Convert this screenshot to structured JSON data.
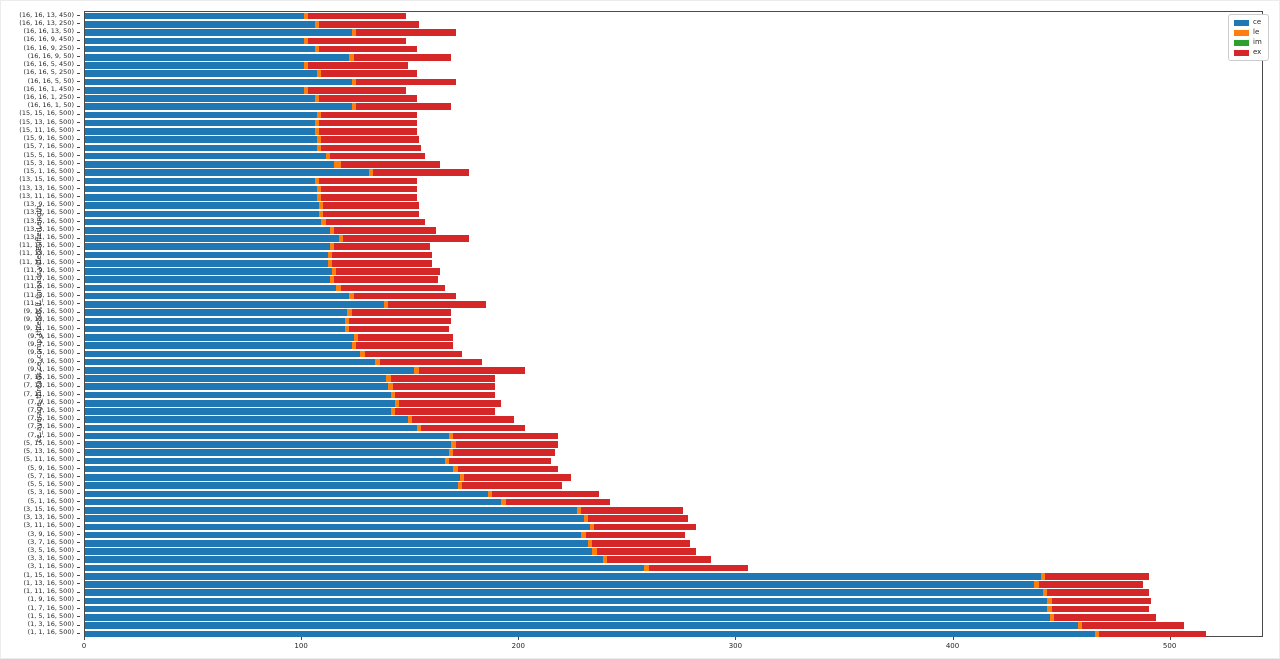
{
  "chart_data": {
    "type": "bar",
    "orientation": "horizontal",
    "stacked": true,
    "title": "",
    "xlabel": "",
    "ylabel": "ce_average_threads,ce_comp_threads,lf_threads,videoBufferLength",
    "xlim": [
      0,
      543
    ],
    "xticks": [
      0,
      100,
      200,
      300,
      400,
      500
    ],
    "grid": false,
    "legend_position": "upper right",
    "bar_color_accents": {
      "ce": "#1f77b4",
      "le": "#ff7f0e",
      "im": "#2ca02c",
      "ex": "#d62728"
    },
    "categories": [
      "(16, 16, 13, 450)",
      "(16, 16, 13, 250)",
      "(16, 16, 13, 50)",
      "(16, 16, 9, 450)",
      "(16, 16, 9, 250)",
      "(16, 16, 9, 50)",
      "(16, 16, 5, 450)",
      "(16, 16, 5, 250)",
      "(16, 16, 5, 50)",
      "(16, 16, 1, 450)",
      "(16, 16, 1, 250)",
      "(16, 16, 1, 50)",
      "(15, 15, 16, 500)",
      "(15, 13, 16, 500)",
      "(15, 11, 16, 500)",
      "(15, 9, 16, 500)",
      "(15, 7, 16, 500)",
      "(15, 5, 16, 500)",
      "(15, 3, 16, 500)",
      "(15, 1, 16, 500)",
      "(13, 15, 16, 500)",
      "(13, 13, 16, 500)",
      "(13, 11, 16, 500)",
      "(13, 9, 16, 500)",
      "(13, 7, 16, 500)",
      "(13, 5, 16, 500)",
      "(13, 3, 16, 500)",
      "(13, 1, 16, 500)",
      "(11, 15, 16, 500)",
      "(11, 13, 16, 500)",
      "(11, 11, 16, 500)",
      "(11, 9, 16, 500)",
      "(11, 7, 16, 500)",
      "(11, 5, 16, 500)",
      "(11, 3, 16, 500)",
      "(11, 1, 16, 500)",
      "(9, 15, 16, 500)",
      "(9, 13, 16, 500)",
      "(9, 11, 16, 500)",
      "(9, 9, 16, 500)",
      "(9, 7, 16, 500)",
      "(9, 5, 16, 500)",
      "(9, 3, 16, 500)",
      "(9, 1, 16, 500)",
      "(7, 15, 16, 500)",
      "(7, 13, 16, 500)",
      "(7, 11, 16, 500)",
      "(7, 9, 16, 500)",
      "(7, 7, 16, 500)",
      "(7, 5, 16, 500)",
      "(7, 3, 16, 500)",
      "(7, 1, 16, 500)",
      "(5, 15, 16, 500)",
      "(5, 13, 16, 500)",
      "(5, 11, 16, 500)",
      "(5, 9, 16, 500)",
      "(5, 7, 16, 500)",
      "(5, 5, 16, 500)",
      "(5, 3, 16, 500)",
      "(5, 1, 16, 500)",
      "(3, 15, 16, 500)",
      "(3, 13, 16, 500)",
      "(3, 11, 16, 500)",
      "(3, 9, 16, 500)",
      "(3, 7, 16, 500)",
      "(3, 5, 16, 500)",
      "(3, 3, 16, 500)",
      "(3, 1, 16, 500)",
      "(1, 15, 16, 500)",
      "(1, 13, 16, 500)",
      "(1, 11, 16, 500)",
      "(1, 9, 16, 500)",
      "(1, 7, 16, 500)",
      "(1, 5, 16, 500)",
      "(1, 3, 16, 500)",
      "(1, 1, 16, 500)"
    ],
    "series": [
      {
        "name": "ce",
        "color": "#1f77b4",
        "values": [
          101,
          106,
          123,
          101,
          106,
          122,
          101,
          107,
          123,
          101,
          106,
          123,
          107,
          106,
          106,
          107,
          107,
          111,
          115,
          131,
          106,
          107,
          107,
          108,
          108,
          109,
          113,
          117,
          113,
          112,
          112,
          114,
          113,
          116,
          122,
          138,
          121,
          120,
          120,
          124,
          123,
          127,
          134,
          152,
          139,
          140,
          141,
          143,
          141,
          149,
          153,
          168,
          169,
          168,
          166,
          170,
          173,
          172,
          186,
          192,
          227,
          230,
          233,
          229,
          232,
          234,
          239,
          258,
          441,
          438,
          442,
          444,
          444,
          445,
          458,
          466
        ]
      },
      {
        "name": "le",
        "color": "#ff7f0e",
        "values": [
          2,
          2,
          2,
          2,
          2,
          2,
          2,
          2,
          2,
          2,
          2,
          2,
          2,
          2,
          2,
          2,
          2,
          2,
          3,
          2,
          2,
          2,
          2,
          2,
          2,
          2,
          2,
          2,
          2,
          2,
          2,
          2,
          2,
          2,
          2,
          2,
          2,
          2,
          2,
          2,
          2,
          2,
          2,
          2,
          2,
          2,
          2,
          2,
          2,
          2,
          2,
          2,
          2,
          2,
          2,
          2,
          2,
          2,
          2,
          2,
          2,
          2,
          2,
          2,
          2,
          2,
          2,
          2,
          2,
          2,
          2,
          2,
          2,
          2,
          2,
          2
        ]
      },
      {
        "name": "im",
        "color": "#2ca02c",
        "values": [
          0,
          0,
          0,
          0,
          0,
          0,
          0,
          0,
          0,
          0,
          0,
          0,
          0,
          0,
          0,
          0,
          0,
          0,
          0,
          0,
          0,
          0,
          0,
          0,
          0,
          0,
          0,
          0,
          0,
          0,
          0,
          0,
          0,
          0,
          0,
          0,
          0,
          0,
          0,
          0,
          0,
          0,
          0,
          0,
          0,
          0,
          0,
          0,
          0,
          0,
          0,
          0,
          0,
          0,
          0,
          0,
          0,
          0,
          0,
          0,
          0,
          0,
          0,
          0,
          0,
          0,
          0,
          0,
          0,
          0,
          0,
          0,
          0,
          0,
          0,
          0
        ]
      },
      {
        "name": "ex",
        "color": "#d62728",
        "values": [
          45,
          46,
          46,
          45,
          45,
          45,
          46,
          44,
          46,
          45,
          45,
          44,
          44,
          45,
          45,
          45,
          46,
          44,
          46,
          44,
          45,
          44,
          44,
          44,
          44,
          46,
          47,
          58,
          44,
          46,
          46,
          48,
          48,
          48,
          47,
          45,
          46,
          47,
          46,
          44,
          45,
          45,
          47,
          49,
          48,
          47,
          46,
          47,
          46,
          47,
          48,
          48,
          47,
          47,
          47,
          46,
          49,
          46,
          49,
          48,
          47,
          46,
          47,
          46,
          45,
          46,
          48,
          46,
          48,
          48,
          47,
          46,
          45,
          47,
          47,
          49
        ]
      }
    ]
  },
  "axes": {
    "x_tick_labels": [
      "0",
      "100",
      "200",
      "300",
      "400",
      "500"
    ],
    "y_axis_title": "ce_average_threads,ce_comp_threads,lf_threads,videoBufferLength"
  },
  "legend": {
    "entries": [
      {
        "label": "ce",
        "color": "#1f77b4"
      },
      {
        "label": "le",
        "color": "#ff7f0e"
      },
      {
        "label": "im",
        "color": "#2ca02c"
      },
      {
        "label": "ex",
        "color": "#d62728"
      }
    ]
  }
}
